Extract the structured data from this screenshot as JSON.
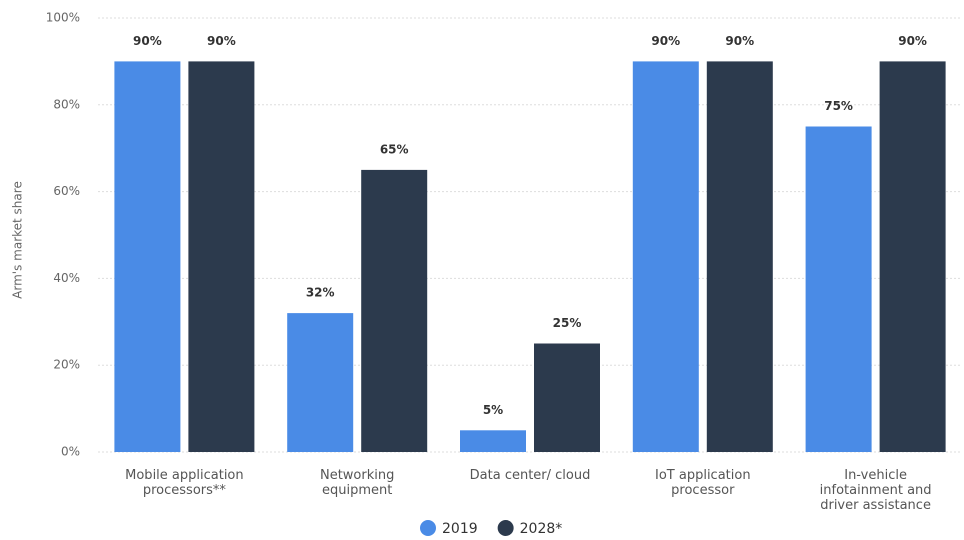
{
  "chart_data": {
    "type": "bar",
    "y_label": "Arm's market share",
    "categories": [
      "Mobile application processors**",
      "Networking equipment",
      "Data center/ cloud",
      "IoT application processor",
      "In-vehicle infotainment and driver assistance"
    ],
    "series": [
      {
        "name": "2019",
        "color": "#4a8be6",
        "values": [
          90,
          32,
          5,
          90,
          75
        ],
        "value_labels": [
          "90%",
          "32%",
          "5%",
          "90%",
          "75%"
        ]
      },
      {
        "name": "2028*",
        "color": "#2c3a4d",
        "values": [
          90,
          65,
          25,
          90,
          90
        ],
        "value_labels": [
          "90%",
          "65%",
          "25%",
          "90%",
          "90%"
        ]
      }
    ],
    "ylim": [
      0,
      100
    ],
    "yticks": [
      {
        "value": 0,
        "label": "0%"
      },
      {
        "value": 20,
        "label": "20%"
      },
      {
        "value": 40,
        "label": "40%"
      },
      {
        "value": 60,
        "label": "60%"
      },
      {
        "value": 80,
        "label": "80%"
      },
      {
        "value": 100,
        "label": "100%"
      }
    ],
    "grid": true
  }
}
